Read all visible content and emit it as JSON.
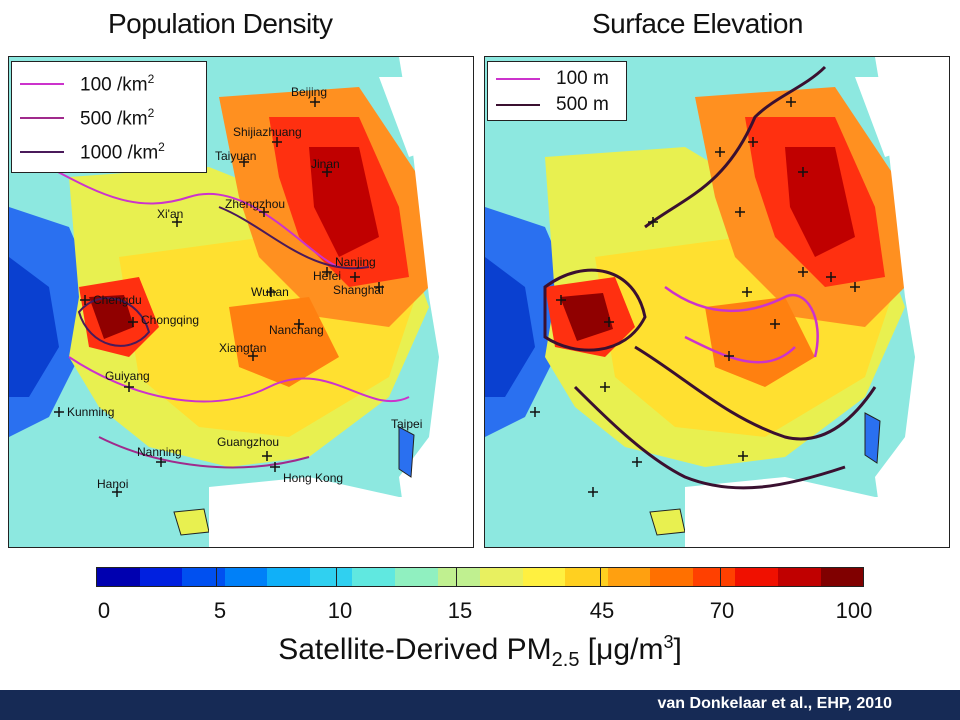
{
  "titles": {
    "left": "Population Density",
    "right": "Surface Elevation"
  },
  "left_legend": {
    "items": [
      {
        "value": "100",
        "unit_prefix": " /km",
        "exp": "2",
        "color": "#cc33cc"
      },
      {
        "value": "500",
        "unit_prefix": " /km",
        "exp": "2",
        "color": "#a02a8c"
      },
      {
        "value": "1000",
        "unit_prefix": " /km",
        "exp": "2",
        "color": "#4a1a5a"
      }
    ]
  },
  "right_legend": {
    "items": [
      {
        "label": "100 m",
        "color": "#cc33cc"
      },
      {
        "label": "500 m",
        "color": "#3a1030"
      }
    ]
  },
  "cities": [
    {
      "name": "Beijing"
    },
    {
      "name": "Shijiazhuang"
    },
    {
      "name": "Taiyuan"
    },
    {
      "name": "Jinan"
    },
    {
      "name": "Zhengzhou"
    },
    {
      "name": "Xi'an"
    },
    {
      "name": "Nanjing"
    },
    {
      "name": "Hefei"
    },
    {
      "name": "Shanghai"
    },
    {
      "name": "Wuhan"
    },
    {
      "name": "Chengdu"
    },
    {
      "name": "Chongqing"
    },
    {
      "name": "Nanchang"
    },
    {
      "name": "Xiangtan"
    },
    {
      "name": "Guiyang"
    },
    {
      "name": "Kunming"
    },
    {
      "name": "Taipei"
    },
    {
      "name": "Nanning"
    },
    {
      "name": "Guangzhou"
    },
    {
      "name": "Hong Kong"
    },
    {
      "name": "Hanoi"
    }
  ],
  "colorbar": {
    "ticks": [
      "0",
      "5",
      "10",
      "15",
      "45",
      "70",
      "100"
    ],
    "colors": [
      "#0000b0",
      "#0020e0",
      "#0050f0",
      "#0080f8",
      "#10b0f8",
      "#30d0f0",
      "#60e8e0",
      "#90f0c0",
      "#c0f090",
      "#e8f060",
      "#fff040",
      "#ffd020",
      "#ffa010",
      "#ff7000",
      "#ff4000",
      "#f01000",
      "#c00000",
      "#800000"
    ],
    "label_main": "Satellite-Derived PM",
    "label_sub": "2.5",
    "label_units_open": " [",
    "label_mu": "μ",
    "label_units": "g/m",
    "label_exp": "3",
    "label_units_close": "]"
  },
  "footer": {
    "citation": "van Donkelaar et al., EHP, 2010"
  }
}
